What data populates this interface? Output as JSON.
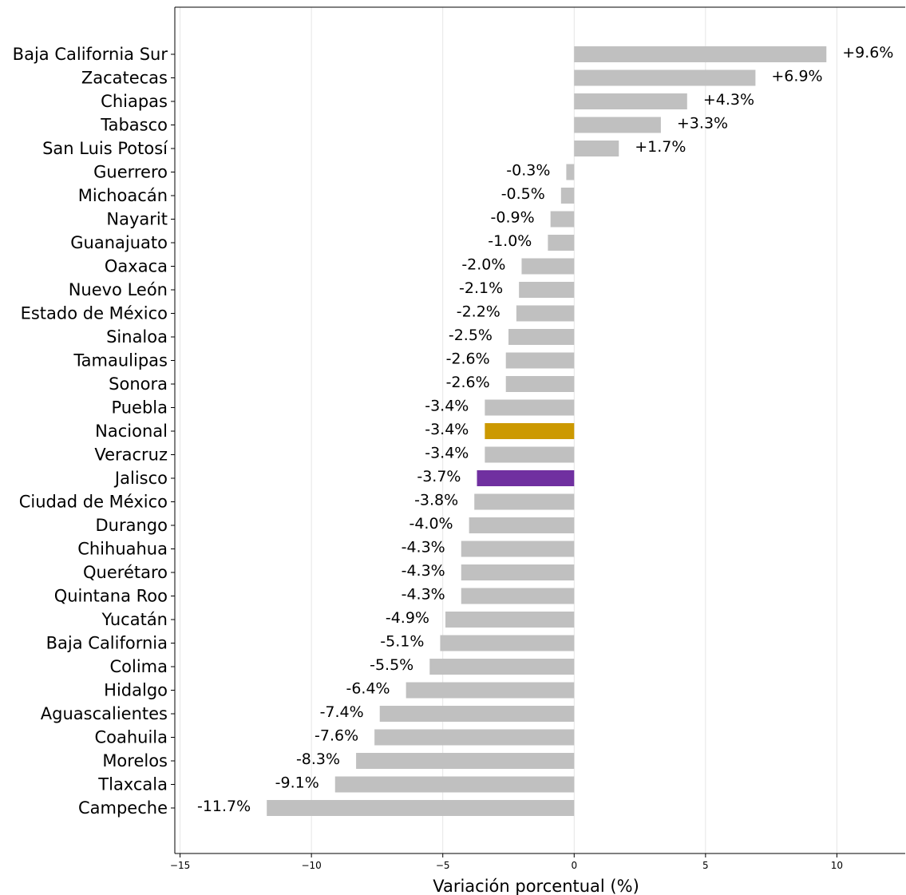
{
  "chart_data": {
    "type": "bar",
    "orientation": "horizontal",
    "categories": [
      "Baja California Sur",
      "Zacatecas",
      "Chiapas",
      "Tabasco",
      "San Luis Potosí",
      "Guerrero",
      "Michoacán",
      "Nayarit",
      "Guanajuato",
      "Oaxaca",
      "Nuevo León",
      "Estado de México",
      "Sinaloa",
      "Tamaulipas",
      "Sonora",
      "Puebla",
      "Nacional",
      "Veracruz",
      "Jalisco",
      "Ciudad de México",
      "Durango",
      "Chihuahua",
      "Querétaro",
      "Quintana Roo",
      "Yucatán",
      "Baja California",
      "Colima",
      "Hidalgo",
      "Aguascalientes",
      "Coahuila",
      "Morelos",
      "Tlaxcala",
      "Campeche"
    ],
    "values": [
      9.6,
      6.9,
      4.3,
      3.3,
      1.7,
      -0.3,
      -0.5,
      -0.9,
      -1.0,
      -2.0,
      -2.1,
      -2.2,
      -2.5,
      -2.6,
      -2.6,
      -3.4,
      -3.4,
      -3.4,
      -3.7,
      -3.8,
      -4.0,
      -4.3,
      -4.3,
      -4.3,
      -4.9,
      -5.1,
      -5.5,
      -6.4,
      -7.4,
      -7.6,
      -8.3,
      -9.1,
      -11.7
    ],
    "data_labels": [
      "+9.6%",
      "+6.9%",
      "+4.3%",
      "+3.3%",
      "+1.7%",
      "-0.3%",
      "-0.5%",
      "-0.9%",
      "-1.0%",
      "-2.0%",
      "-2.1%",
      "-2.2%",
      "-2.5%",
      "-2.6%",
      "-2.6%",
      "-3.4%",
      "-3.4%",
      "-3.4%",
      "-3.7%",
      "-3.8%",
      "-4.0%",
      "-4.3%",
      "-4.3%",
      "-4.3%",
      "-4.9%",
      "-5.1%",
      "-5.5%",
      "-6.4%",
      "-7.4%",
      "-7.6%",
      "-8.3%",
      "-9.1%",
      "-11.7%"
    ],
    "xlabel": "Variación porcentual (%)",
    "ylabel": "",
    "title": "",
    "xlim": [
      -15.2,
      12.6
    ],
    "xticks": [
      -15,
      -10,
      -5,
      0,
      5,
      10
    ],
    "xtick_labels": [
      "−15",
      "−10",
      "−5",
      "0",
      "5",
      "10"
    ],
    "grid": "vertical",
    "colors": {
      "default": "#c0c0c0",
      "Nacional": "#cc9900",
      "Jalisco": "#7030a0",
      "grid": "#e5e5e5",
      "axis": "#000000"
    }
  }
}
